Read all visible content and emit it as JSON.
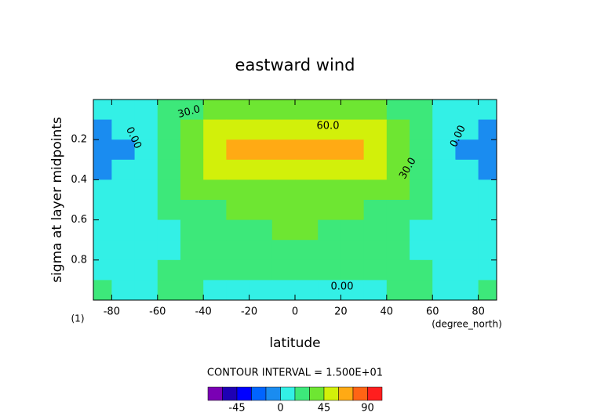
{
  "chart_data": {
    "type": "contour",
    "title": "eastward wind",
    "x_label": "latitude",
    "x_units": "(degree_north)",
    "y_label": "sigma at layer midpoints",
    "y_units": "(1)",
    "subtitle": "CONTOUR INTERVAL = 1.500E+01",
    "annotations": [
      "30.0",
      "0.00",
      "60.0",
      "0.00",
      "30.0",
      "0.00"
    ],
    "x": [
      -85,
      -75,
      -65,
      -55,
      -45,
      -35,
      -25,
      -15,
      -5,
      5,
      15,
      25,
      35,
      45,
      55,
      65,
      75,
      85
    ],
    "y": [
      0.05,
      0.15,
      0.25,
      0.35,
      0.45,
      0.55,
      0.65,
      0.75,
      0.85,
      0.95
    ],
    "z": [
      [
        3,
        5,
        10,
        18,
        25,
        32,
        38,
        40,
        40,
        40,
        40,
        38,
        32,
        25,
        18,
        10,
        5,
        3
      ],
      [
        -3,
        2,
        12,
        25,
        35,
        45,
        52,
        55,
        55,
        55,
        55,
        52,
        45,
        35,
        25,
        12,
        2,
        -3
      ],
      [
        -10,
        -2,
        12,
        28,
        40,
        55,
        64,
        65,
        63,
        63,
        65,
        64,
        55,
        40,
        28,
        12,
        -2,
        -10
      ],
      [
        -5,
        2,
        10,
        25,
        36,
        45,
        50,
        52,
        52,
        52,
        52,
        50,
        45,
        36,
        25,
        10,
        2,
        -5
      ],
      [
        2,
        4,
        8,
        20,
        30,
        36,
        40,
        43,
        44,
        44,
        43,
        40,
        36,
        30,
        20,
        8,
        4,
        2
      ],
      [
        3,
        5,
        8,
        16,
        24,
        28,
        32,
        35,
        36,
        36,
        35,
        32,
        28,
        24,
        16,
        8,
        5,
        3
      ],
      [
        3,
        5,
        7,
        14,
        19,
        22,
        26,
        29,
        31,
        31,
        29,
        26,
        22,
        19,
        14,
        7,
        5,
        3
      ],
      [
        5,
        6,
        8,
        14,
        16,
        18,
        21,
        24,
        26,
        26,
        24,
        21,
        18,
        16,
        14,
        8,
        6,
        5
      ],
      [
        8,
        8,
        10,
        15,
        16,
        17,
        18,
        19,
        20,
        20,
        19,
        18,
        17,
        16,
        15,
        10,
        8,
        8
      ],
      [
        15,
        14,
        14,
        15,
        15,
        14,
        12,
        7,
        5,
        5,
        7,
        12,
        14,
        15,
        15,
        14,
        14,
        15
      ]
    ],
    "cell_width": 10,
    "cell_height": 0.1,
    "xlim": [
      -88,
      88
    ],
    "ylim": [
      0,
      1
    ],
    "y_reversed": true,
    "xticks": [
      -80,
      -60,
      -40,
      -20,
      0,
      20,
      40,
      60,
      80
    ],
    "yticks": [
      0.2,
      0.4,
      0.6,
      0.8
    ],
    "levels": [
      -75,
      -60,
      -45,
      -30,
      -15,
      0,
      15,
      30,
      45,
      60,
      75,
      90,
      105
    ],
    "colors": [
      "#7a00b4",
      "#1e00b4",
      "#0000ff",
      "#0064ff",
      "#1a8cf0",
      "#33f0e6",
      "#3de87a",
      "#6ee632",
      "#d2f00a",
      "#ffaa14",
      "#ff6414",
      "#ff1e1e"
    ],
    "colorbar_ticks": [
      -45,
      0,
      45,
      90
    ]
  }
}
